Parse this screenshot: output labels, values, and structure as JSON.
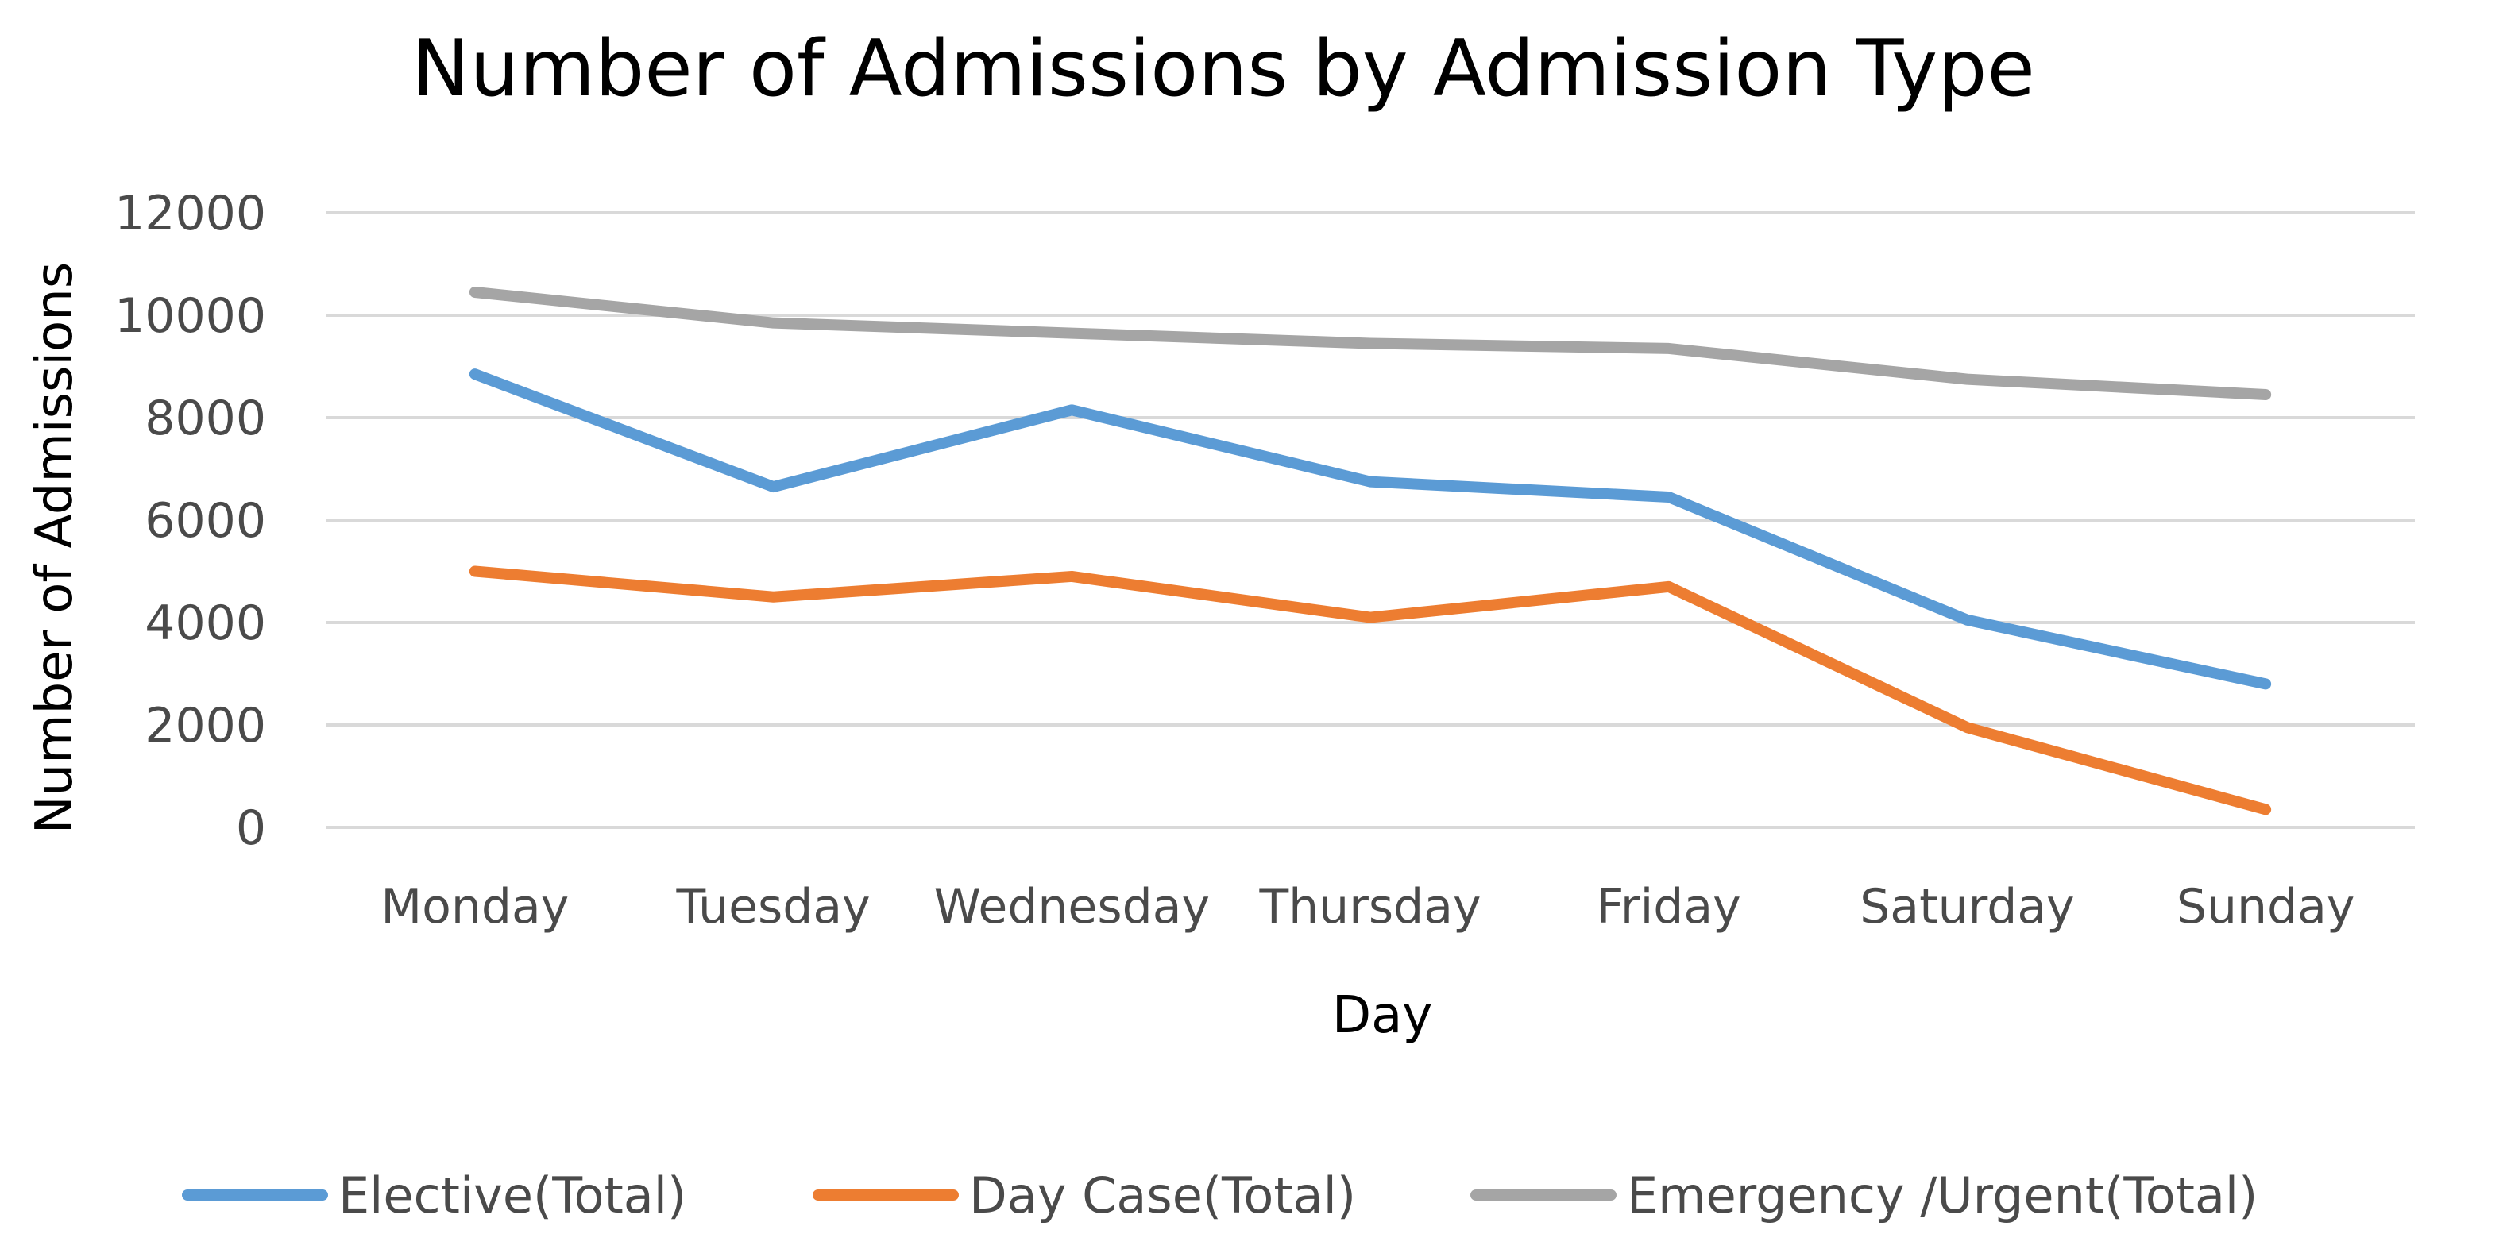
{
  "chart_data": {
    "type": "line",
    "title": "Number of Admissions by Admission Type",
    "xlabel": "Day",
    "ylabel": "Number of Admissions",
    "categories": [
      "Monday",
      "Tuesday",
      "Wednesday",
      "Thursday",
      "Friday",
      "Saturday",
      "Sunday"
    ],
    "ylim": [
      0,
      12000
    ],
    "yticks": [
      "0",
      "2000",
      "4000",
      "6000",
      "8000",
      "10000",
      "12000"
    ],
    "grid": true,
    "legend_position": "bottom",
    "series": [
      {
        "name": "Elective(Total)",
        "color": "#5b9bd5",
        "values": [
          8850,
          6650,
          8150,
          6750,
          6450,
          4050,
          2800
        ]
      },
      {
        "name": "Day Case(Total)",
        "color": "#ed7d31",
        "values": [
          5000,
          4500,
          4900,
          4100,
          4700,
          1950,
          350
        ]
      },
      {
        "name": "Emergency /Urgent(Total)",
        "color": "#a5a5a5",
        "values": [
          10450,
          9850,
          9650,
          9450,
          9350,
          8750,
          8450
        ]
      }
    ]
  }
}
